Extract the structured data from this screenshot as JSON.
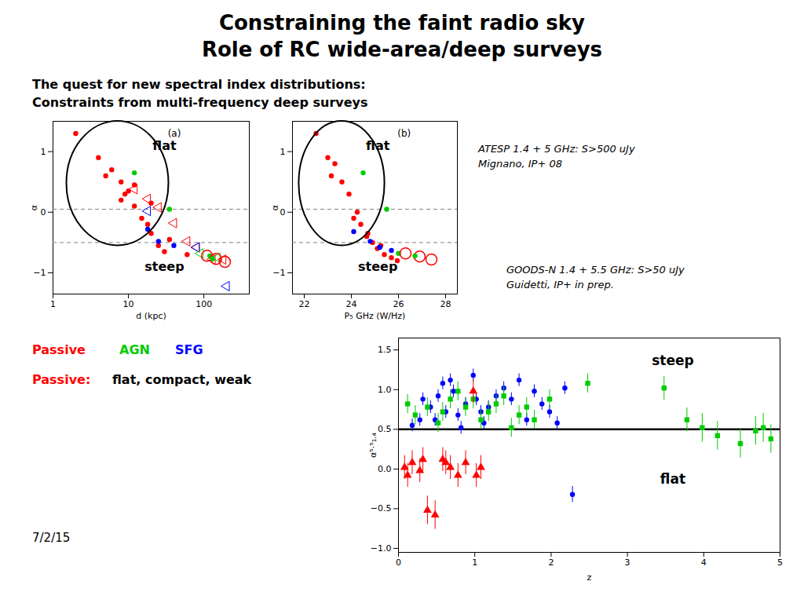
{
  "title": [
    "Constraining the faint radio sky",
    "Role of RC wide-area/deep surveys"
  ],
  "subtitle": [
    "The quest for new spectral index distributions:",
    "Constraints from multi-frequency deep surveys"
  ],
  "annotations": [
    {
      "text": "ATESP 1.4 + 5 GHz: S>500 uJy"
    },
    {
      "text": "Mignano, IP+ 08"
    },
    {
      "text": "GOODS-N 1.4 + 5.5 GHz: S>50 uJy"
    },
    {
      "text": "Guidetti, IP+ in prep."
    },
    {
      "text": "Passive",
      "color": "#ff0000"
    },
    {
      "text": "AGN",
      "color": "#00cc00"
    },
    {
      "text": "SFG",
      "color": "#0000ff"
    },
    {
      "text": "Passive:",
      "color": "#ff0000"
    },
    {
      "text": "flat, compact, weak"
    },
    {
      "text": "7/2/15"
    }
  ],
  "chart_data": [
    {
      "type": "scatter",
      "xlabel": "d (kpc)",
      "ylabel": "α",
      "log": "x",
      "xlim": [
        1,
        400
      ],
      "xticks": [
        1,
        10,
        100
      ],
      "ylim": [
        -1.35,
        1.5
      ],
      "yticks": [
        -1,
        0,
        1
      ],
      "reference_lines": [
        {
          "y": 0.05,
          "color": "gray",
          "line_style": "dashed"
        },
        {
          "y": -0.5,
          "color": "gray",
          "line_style": "dashed"
        }
      ],
      "annotations": [
        {
          "text": "flat"
        },
        {
          "text": "steep"
        },
        {
          "text": "(a)"
        }
      ],
      "series": [
        {
          "color": "#ff0000",
          "marker": "circle",
          "x": [
            2,
            4,
            6,
            8,
            10,
            12,
            15,
            18,
            20,
            25,
            30,
            8,
            12,
            20,
            35,
            60,
            5,
            9
          ],
          "y": [
            1.3,
            0.9,
            0.7,
            0.5,
            0.35,
            0.1,
            -0.1,
            -0.2,
            -0.35,
            -0.55,
            -0.65,
            0.2,
            0.45,
            0.15,
            -0.45,
            -0.7,
            0.6,
            0.3
          ]
        },
        {
          "color": "#00cc00",
          "marker": "circle",
          "x": [
            12,
            35,
            120
          ],
          "y": [
            0.65,
            0.05,
            -0.72
          ]
        },
        {
          "color": "#0000ff",
          "marker": "circle",
          "x": [
            18,
            25,
            40
          ],
          "y": [
            -0.28,
            -0.48,
            -0.55
          ]
        },
        {
          "color": "#ff0000",
          "marker": "triangle_left_open",
          "x": [
            12,
            18,
            25,
            40,
            60,
            80,
            130,
            180
          ],
          "y": [
            0.38,
            0.22,
            0.08,
            -0.18,
            -0.48,
            -0.58,
            -0.78,
            -0.78
          ]
        },
        {
          "color": "#0000ff",
          "marker": "triangle_left_open",
          "x": [
            18,
            80,
            200
          ],
          "y": [
            0.02,
            -0.58,
            -1.22
          ]
        },
        {
          "color": "#00cc00",
          "marker": "triangle_left_open",
          "x": [
            90,
            150
          ],
          "y": [
            -0.68,
            -0.75
          ]
        },
        {
          "color": "#ff0000",
          "marker": "ring",
          "x": [
            110,
            145,
            190
          ],
          "y": [
            -0.72,
            -0.77,
            -0.82
          ]
        },
        {
          "color": "#00cc00",
          "marker": "circle",
          "x": [
            130
          ],
          "y": [
            -0.77
          ]
        }
      ]
    },
    {
      "type": "scatter",
      "xlabel": "P₅ GHz (W/Hz)",
      "ylabel": "α",
      "xlim": [
        21.5,
        28.5
      ],
      "xticks": [
        22,
        24,
        26,
        28
      ],
      "ylim": [
        -1.35,
        1.5
      ],
      "yticks": [
        -1,
        0,
        1
      ],
      "reference_lines": [
        {
          "y": 0.05,
          "color": "gray",
          "line_style": "dashed"
        },
        {
          "y": -0.5,
          "color": "gray",
          "line_style": "dashed"
        }
      ],
      "annotations": [
        {
          "text": "flat"
        },
        {
          "text": "steep"
        },
        {
          "text": "(b)"
        }
      ],
      "series": [
        {
          "color": "#ff0000",
          "marker": "circle",
          "x": [
            22.5,
            23.0,
            23.3,
            23.6,
            23.9,
            24.1,
            24.4,
            24.7,
            24.9,
            25.1,
            25.4,
            25.7,
            25.95,
            24.25,
            24.65,
            23.15,
            25.25
          ],
          "y": [
            1.3,
            0.9,
            0.8,
            0.5,
            0.3,
            -0.1,
            -0.2,
            -0.35,
            -0.5,
            -0.6,
            -0.7,
            -0.75,
            -0.8,
            0.0,
            -0.4,
            0.6,
            -0.55
          ]
        },
        {
          "color": "#00cc00",
          "marker": "circle",
          "x": [
            24.5,
            25.5,
            26.0
          ],
          "y": [
            0.65,
            0.05,
            -0.68
          ]
        },
        {
          "color": "#0000ff",
          "marker": "circle",
          "x": [
            24.1,
            24.8,
            25.2,
            25.7,
            25.2
          ],
          "y": [
            -0.32,
            -0.48,
            -0.58,
            -0.63,
            -0.58
          ]
        },
        {
          "color": "#ff0000",
          "marker": "ring",
          "x": [
            26.3,
            26.9,
            27.4
          ],
          "y": [
            -0.68,
            -0.73,
            -0.78
          ]
        },
        {
          "color": "#00cc00",
          "marker": "circle",
          "x": [
            26.7
          ],
          "y": [
            -0.72
          ]
        }
      ]
    },
    {
      "type": "scatter",
      "xlabel": "z",
      "ylabel": "α⁵·⁵₁.₄",
      "xlim": [
        0,
        5
      ],
      "xticks": [
        0,
        1,
        2,
        3,
        4,
        5
      ],
      "ylim": [
        -1.05,
        1.65
      ],
      "yticks": [
        {
          "value": -1,
          "label": "−1.0"
        },
        {
          "value": -0.5,
          "label": "−0.5"
        },
        {
          "value": 0,
          "label": "0.0"
        },
        0.5,
        {
          "value": 1,
          "label": "1.0"
        },
        1.5
      ],
      "reference_lines": [
        {
          "y": 0.5,
          "color": "black",
          "line_style": "solid"
        }
      ],
      "annotations": [
        {
          "text": "steep"
        },
        {
          "text": "flat"
        }
      ],
      "series": [
        {
          "color": "#0000ff",
          "marker": "circle",
          "x": [
            0.18,
            0.28,
            0.32,
            0.42,
            0.48,
            0.52,
            0.58,
            0.62,
            0.68,
            0.72,
            0.78,
            0.82,
            0.88,
            0.98,
            1.02,
            1.08,
            1.12,
            1.18,
            1.28,
            1.38,
            1.48,
            1.58,
            1.68,
            1.78,
            1.88,
            1.98,
            2.08,
            2.18,
            2.28
          ],
          "y": [
            0.55,
            0.62,
            0.88,
            0.78,
            0.62,
            0.92,
            1.08,
            0.72,
            1.12,
            0.98,
            0.68,
            0.52,
            0.82,
            1.18,
            0.88,
            0.72,
            0.58,
            0.78,
            0.92,
            1.02,
            0.88,
            1.12,
            0.62,
            0.98,
            0.82,
            0.72,
            0.58,
            1.02,
            -0.32
          ],
          "yerr": [
            0.08,
            0.08,
            0.08,
            0.08,
            0.08,
            0.08,
            0.08,
            0.08,
            0.08,
            0.08,
            0.08,
            0.08,
            0.08,
            0.08,
            0.08,
            0.08,
            0.08,
            0.08,
            0.08,
            0.08,
            0.08,
            0.08,
            0.08,
            0.08,
            0.08,
            0.08,
            0.08,
            0.08,
            0.1
          ]
        },
        {
          "color": "#00cc00",
          "marker": "square",
          "x": [
            0.12,
            0.22,
            0.38,
            0.52,
            0.58,
            0.68,
            0.78,
            0.88,
            0.98,
            1.08,
            1.18,
            1.28,
            1.38,
            1.48,
            1.58,
            1.68,
            1.78,
            1.98,
            2.48,
            3.48,
            3.78,
            3.98,
            4.18,
            4.48,
            4.68,
            4.78,
            4.88
          ],
          "y": [
            0.82,
            0.68,
            0.78,
            0.58,
            0.72,
            0.88,
            0.98,
            0.78,
            0.88,
            0.62,
            0.72,
            0.82,
            0.92,
            0.52,
            0.68,
            0.78,
            0.62,
            0.88,
            1.08,
            1.02,
            0.62,
            0.52,
            0.42,
            0.32,
            0.48,
            0.52,
            0.38
          ],
          "yerr": [
            0.12,
            0.12,
            0.12,
            0.12,
            0.12,
            0.12,
            0.12,
            0.12,
            0.12,
            0.12,
            0.12,
            0.12,
            0.12,
            0.12,
            0.12,
            0.12,
            0.12,
            0.12,
            0.12,
            0.15,
            0.15,
            0.18,
            0.18,
            0.18,
            0.18,
            0.18,
            0.18
          ]
        },
        {
          "color": "#ff0000",
          "marker": "triangle",
          "x": [
            0.08,
            0.12,
            0.18,
            0.28,
            0.32,
            0.38,
            0.48,
            0.58,
            0.62,
            0.68,
            0.78,
            0.88,
            0.98,
            1.02,
            1.08
          ],
          "y": [
            0.02,
            -0.08,
            0.08,
            -0.02,
            0.12,
            -0.52,
            -0.58,
            0.12,
            0.08,
            0.02,
            -0.08,
            0.08,
            0.98,
            -0.08,
            0.02
          ],
          "yerr": [
            0.15,
            0.15,
            0.15,
            0.15,
            0.15,
            0.18,
            0.18,
            0.15,
            0.15,
            0.15,
            0.15,
            0.15,
            0.15,
            0.15,
            0.15
          ]
        }
      ]
    }
  ]
}
